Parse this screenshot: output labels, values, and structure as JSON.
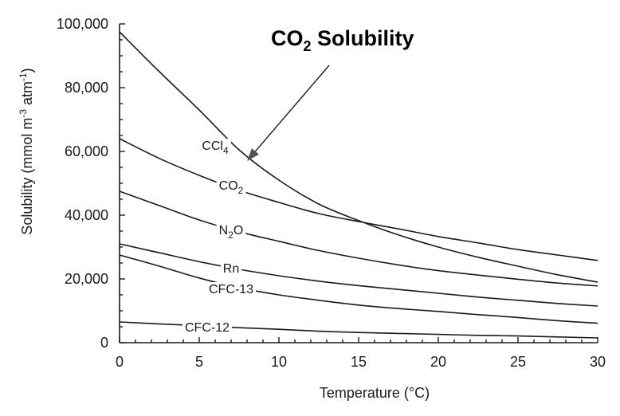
{
  "chart_data": {
    "type": "line",
    "title": "CO",
    "title_sub": "2",
    "title_rest": " Solubility",
    "xlabel": "Temperature (°C)",
    "ylabel": "Solubility (mmol m",
    "ylabel_sup1": "-3",
    "ylabel_mid": " atm",
    "ylabel_sup2": "-1",
    "ylabel_end": ")",
    "xlim": [
      0,
      30
    ],
    "ylim": [
      0,
      100000
    ],
    "x_ticks": [
      0,
      5,
      10,
      15,
      20,
      25,
      30
    ],
    "x_tick_labels": [
      "0",
      "5",
      "10",
      "15",
      "20",
      "25",
      "30"
    ],
    "y_ticks": [
      0,
      20000,
      40000,
      60000,
      80000,
      100000
    ],
    "y_tick_labels": [
      "0",
      "20,000",
      "40,000",
      "60,000",
      "80,000",
      "100,000"
    ],
    "grid": false,
    "annotation_target": [
      8,
      57000
    ],
    "series": [
      {
        "name": "CCl",
        "name_sub": "4",
        "x": [
          0,
          2.5,
          5,
          7.5,
          10,
          12.5,
          15,
          17.5,
          20,
          22.5,
          25,
          27.5,
          30
        ],
        "values": [
          97500,
          85000,
          73000,
          60500,
          51000,
          43500,
          38300,
          33800,
          30000,
          26800,
          24000,
          21300,
          19000
        ],
        "label_at": [
          6,
          62000
        ]
      },
      {
        "name": "CO",
        "name_sub": "2",
        "x": [
          0,
          2.5,
          5,
          7.5,
          10,
          12.5,
          15,
          17.5,
          20,
          22.5,
          25,
          27.5,
          30
        ],
        "values": [
          64000,
          57800,
          52500,
          47800,
          44000,
          40500,
          38000,
          35700,
          33300,
          31300,
          29200,
          27500,
          25800
        ],
        "label_at": [
          7,
          49500
        ]
      },
      {
        "name": "N",
        "name_sub": "2",
        "name_rest": "O",
        "x": [
          0,
          2.5,
          5,
          7.5,
          10,
          12.5,
          15,
          17.5,
          20,
          22.5,
          25,
          27.5,
          30
        ],
        "values": [
          47500,
          43000,
          38500,
          34800,
          31800,
          28900,
          26500,
          24400,
          22600,
          21200,
          19900,
          18700,
          17800
        ],
        "label_at": [
          7,
          35500
        ]
      },
      {
        "name": "Rn",
        "x": [
          0,
          2.5,
          5,
          7.5,
          10,
          12.5,
          15,
          17.5,
          20,
          22.5,
          25,
          27.5,
          30
        ],
        "values": [
          31000,
          28200,
          25400,
          23000,
          21000,
          19300,
          17900,
          16700,
          15500,
          14300,
          13300,
          12300,
          11500
        ],
        "label_at": [
          7,
          23500
        ]
      },
      {
        "name": "CFC-13",
        "x": [
          0,
          2.5,
          5,
          7.5,
          10,
          12.5,
          15,
          17.5,
          20,
          22.5,
          25,
          27.5,
          30
        ],
        "values": [
          27500,
          24000,
          20300,
          17200,
          15000,
          13300,
          11800,
          10700,
          9800,
          8800,
          7900,
          6900,
          6100
        ],
        "label_at": [
          7,
          17000
        ]
      },
      {
        "name": "CFC-12",
        "x": [
          0,
          2.5,
          5,
          7.5,
          10,
          12.5,
          15,
          17.5,
          20,
          22.5,
          25,
          27.5,
          30
        ],
        "values": [
          6500,
          5900,
          5300,
          4700,
          4200,
          3600,
          3200,
          2900,
          2600,
          2300,
          2100,
          1800,
          1500
        ],
        "label_at": [
          5.5,
          5000
        ]
      }
    ]
  }
}
